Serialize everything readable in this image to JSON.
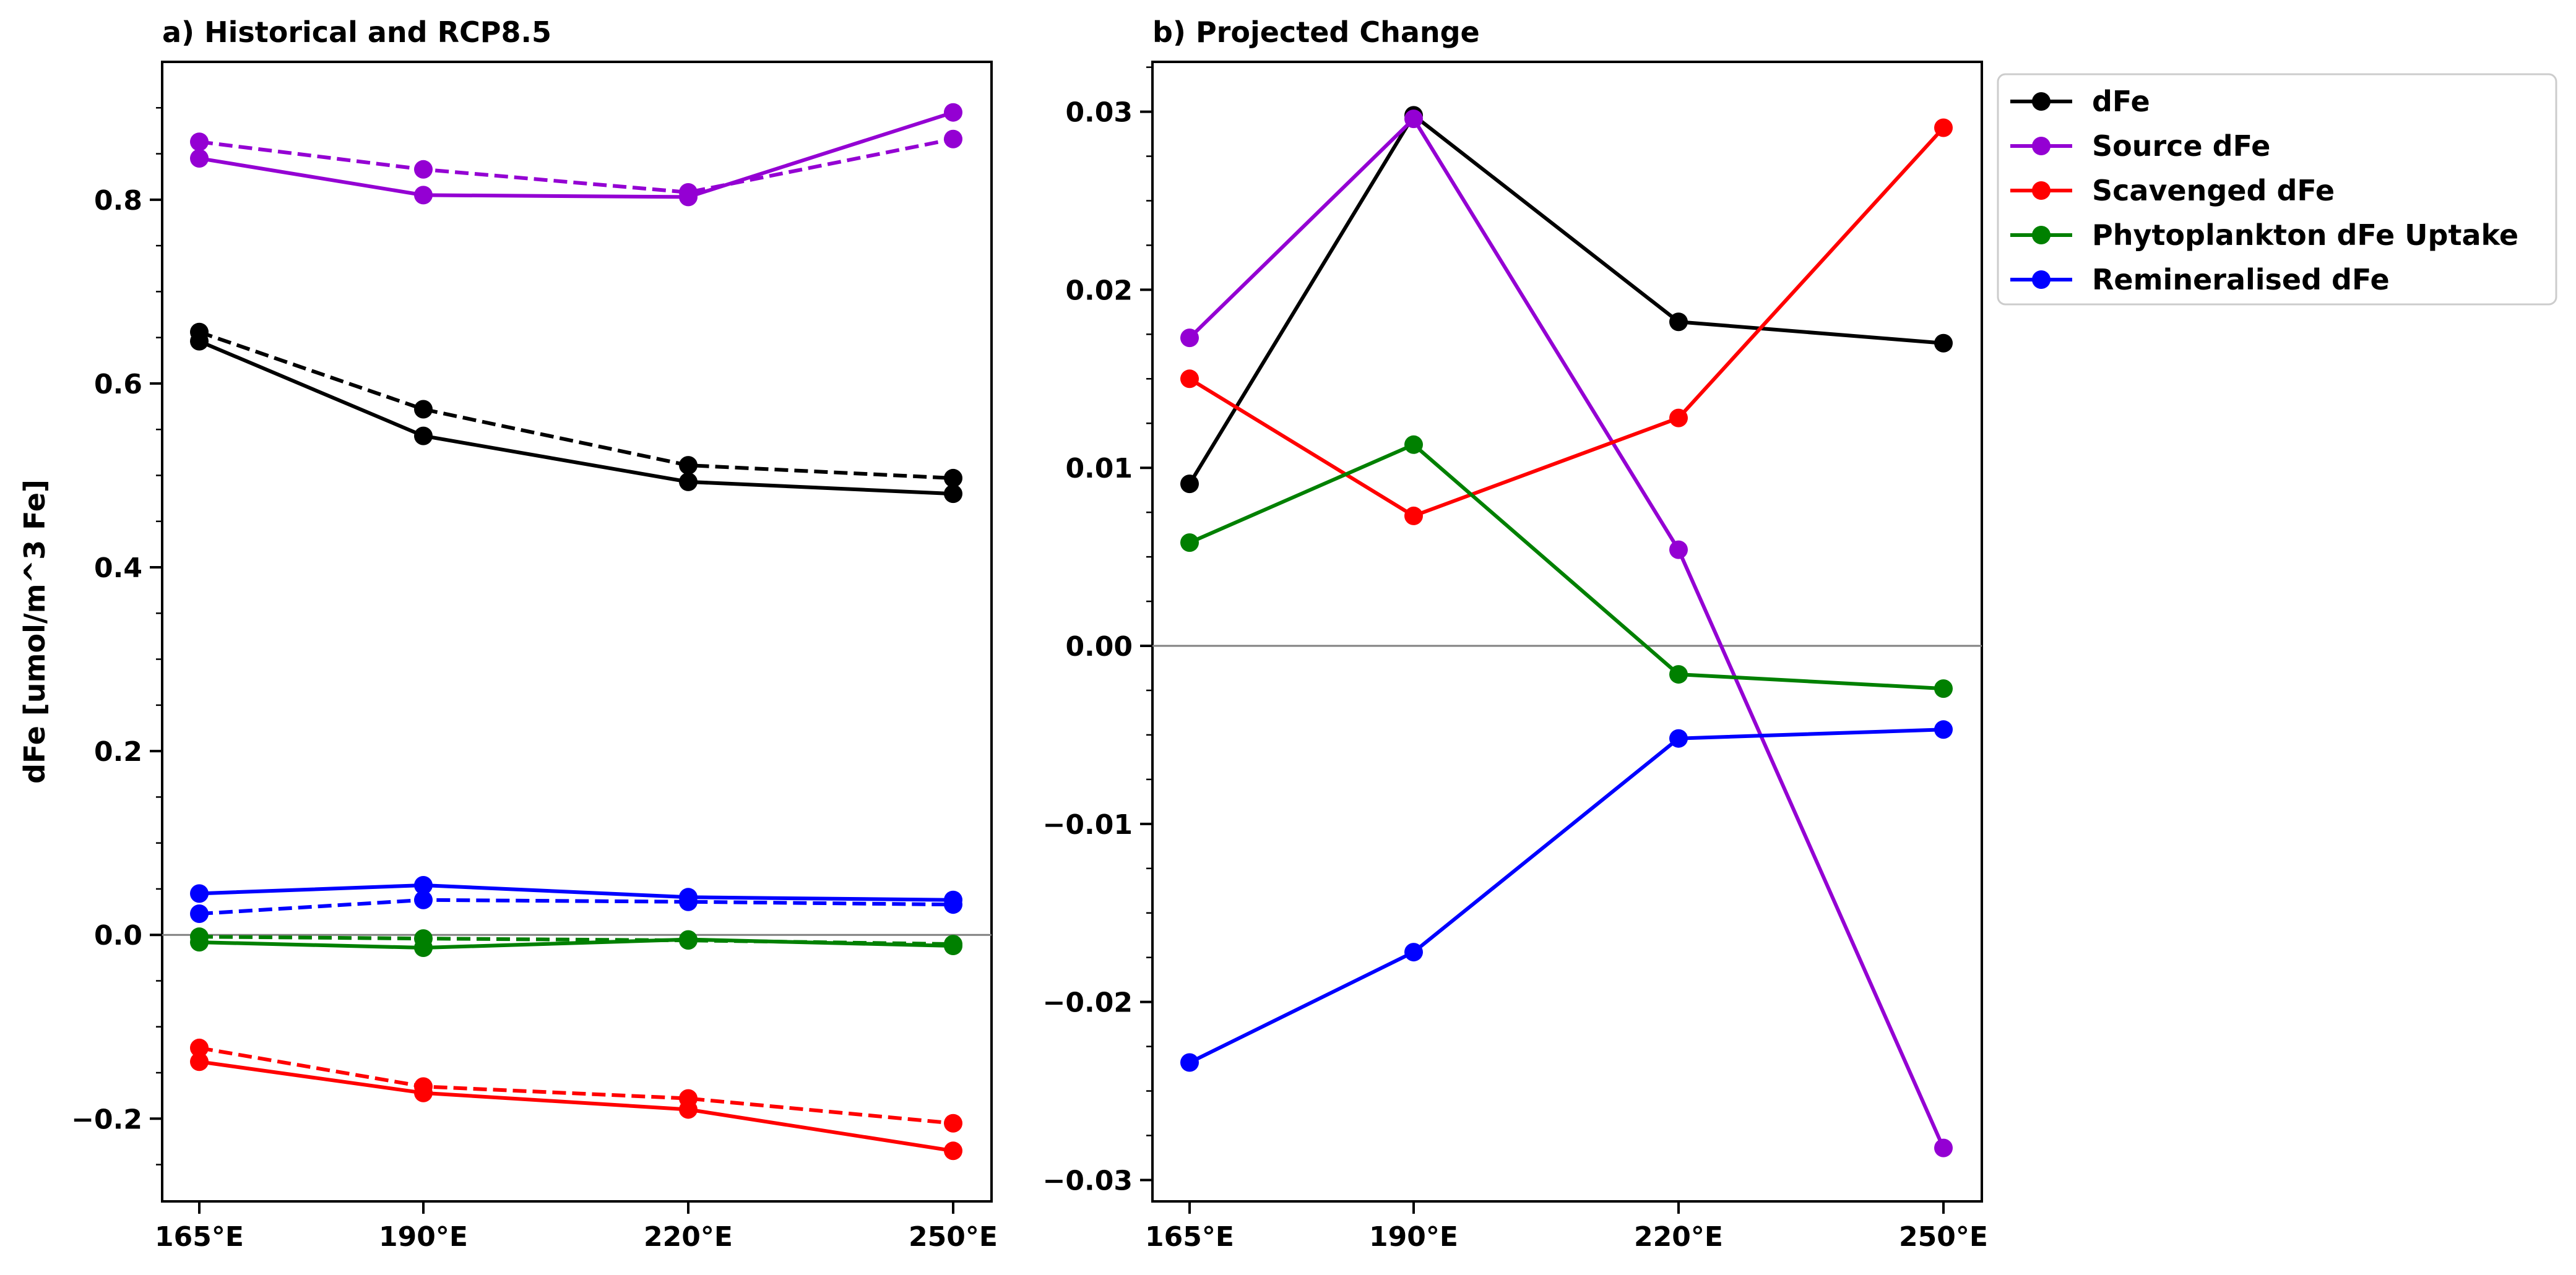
{
  "chart_data": [
    {
      "type": "line",
      "title": "a) Historical and RCP8.5",
      "xlabel": "",
      "ylabel": "dFe [umol/m^3 Fe]",
      "categories": [
        "165°E",
        "190°E",
        "220°E",
        "250°E"
      ],
      "ylim": [
        -0.29,
        0.95
      ],
      "yticks": [
        -0.2,
        0.0,
        0.2,
        0.4,
        0.6,
        0.8
      ],
      "ytick_labels": [
        "−0.2",
        "0.0",
        "0.2",
        "0.4",
        "0.6",
        "0.8"
      ],
      "zero_line": true,
      "grid": false,
      "series": [
        {
          "color": "#9400D3",
          "style": "solid",
          "values": [
            0.845,
            0.805,
            0.803,
            0.895
          ]
        },
        {
          "color": "#9400D3",
          "style": "dashed",
          "values": [
            0.863,
            0.833,
            0.808,
            0.866
          ]
        },
        {
          "color": "#000000",
          "style": "solid",
          "values": [
            0.646,
            0.543,
            0.493,
            0.48
          ]
        },
        {
          "color": "#000000",
          "style": "dashed",
          "values": [
            0.656,
            0.572,
            0.511,
            0.497
          ]
        },
        {
          "color": "#0000FF",
          "style": "solid",
          "values": [
            0.045,
            0.054,
            0.041,
            0.038
          ]
        },
        {
          "color": "#0000FF",
          "style": "dashed",
          "values": [
            0.023,
            0.038,
            0.036,
            0.033
          ]
        },
        {
          "color": "#008000",
          "style": "solid",
          "values": [
            -0.008,
            -0.014,
            -0.005,
            -0.012
          ]
        },
        {
          "color": "#008000",
          "style": "dashed",
          "values": [
            -0.002,
            -0.004,
            -0.006,
            -0.01
          ]
        },
        {
          "color": "#FF0000",
          "style": "solid",
          "values": [
            -0.138,
            -0.172,
            -0.19,
            -0.235
          ]
        },
        {
          "color": "#FF0000",
          "style": "dashed",
          "values": [
            -0.123,
            -0.165,
            -0.178,
            -0.205
          ]
        }
      ]
    },
    {
      "type": "line",
      "title": "b) Projected Change",
      "xlabel": "",
      "ylabel": "",
      "categories": [
        "165°E",
        "190°E",
        "220°E",
        "250°E"
      ],
      "ylim": [
        -0.0312,
        0.0328
      ],
      "yticks": [
        -0.03,
        -0.02,
        -0.01,
        0.0,
        0.01,
        0.02,
        0.03
      ],
      "ytick_labels": [
        "−0.03",
        "−0.02",
        "−0.01",
        "0.00",
        "0.01",
        "0.02",
        "0.03"
      ],
      "zero_line": true,
      "grid": false,
      "legend": "outside-right-top",
      "series": [
        {
          "name": "dFe",
          "color": "#000000",
          "style": "solid",
          "values": [
            0.0091,
            0.0298,
            0.0182,
            0.017
          ]
        },
        {
          "name": "Source dFe",
          "color": "#9400D3",
          "style": "solid",
          "values": [
            0.0173,
            0.0296,
            0.0054,
            -0.0282
          ]
        },
        {
          "name": "Scavenged dFe",
          "color": "#FF0000",
          "style": "solid",
          "values": [
            0.015,
            0.0073,
            0.0128,
            0.0291
          ]
        },
        {
          "name": "Phytoplankton dFe Uptake",
          "color": "#008000",
          "style": "solid",
          "values": [
            0.0058,
            0.0113,
            -0.0016,
            -0.0024
          ]
        },
        {
          "name": "Remineralised dFe",
          "color": "#0000FF",
          "style": "solid",
          "values": [
            -0.0234,
            -0.0172,
            -0.0052,
            -0.0047
          ]
        }
      ]
    }
  ]
}
